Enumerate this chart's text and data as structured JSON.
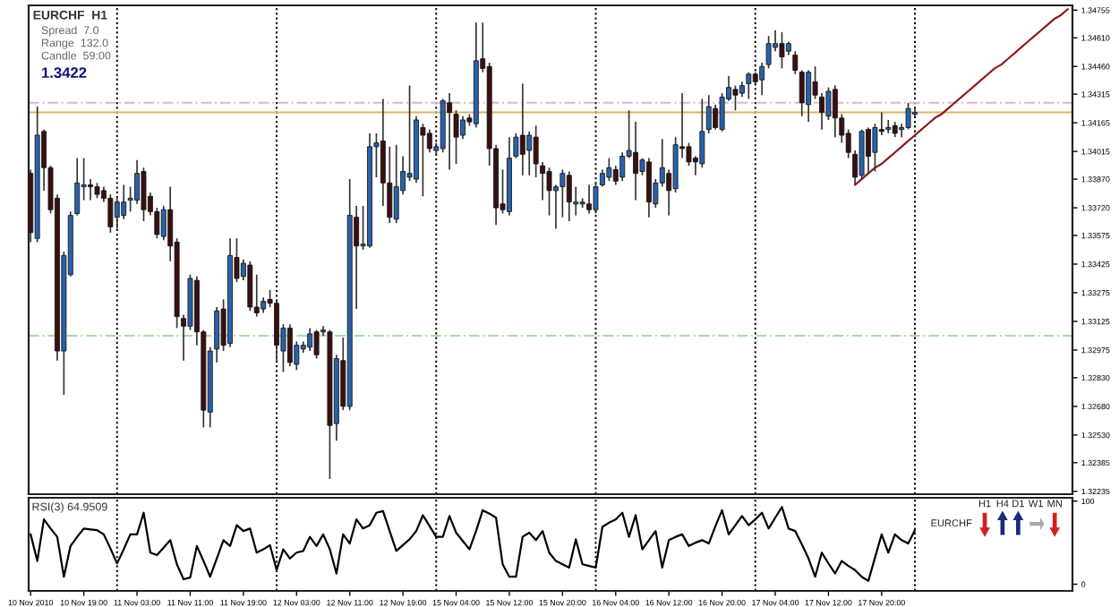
{
  "chart_data": [
    {
      "type": "candlestick",
      "title": "EURCHF  H1",
      "annotations": [
        "Spread  7.0",
        "Range  132.0",
        "Candle  59:00",
        "1.3422"
      ],
      "categories": [
        null,
        null,
        null,
        null,
        null,
        null,
        null,
        null,
        null,
        null,
        null,
        null,
        null,
        null,
        null,
        null,
        null,
        null,
        null,
        null,
        null,
        null,
        null,
        null,
        null,
        null,
        null,
        null,
        null,
        null,
        null,
        null,
        null,
        null,
        null,
        null,
        null,
        null,
        null,
        null,
        null,
        null,
        null,
        null,
        null,
        null,
        null,
        null,
        null,
        null,
        null,
        null,
        null,
        null,
        null,
        null,
        null,
        null,
        null,
        null,
        null,
        null,
        null,
        null,
        null,
        null,
        null,
        null,
        null,
        null,
        null,
        null,
        null,
        null,
        null,
        null,
        null,
        null,
        null,
        null,
        null,
        null,
        null,
        null,
        null,
        null,
        null,
        null,
        null,
        null,
        null,
        null,
        null,
        null,
        null,
        null,
        null,
        null,
        null,
        null,
        null,
        null,
        null,
        null,
        null,
        null,
        null,
        null,
        null,
        null,
        null,
        null,
        null,
        null,
        null,
        null,
        null,
        null,
        null,
        null,
        null,
        null,
        null,
        null,
        null,
        null,
        null,
        null,
        null,
        null,
        null,
        null,
        null,
        null,
        null,
        null,
        null,
        null,
        null,
        null,
        null,
        null,
        null,
        null,
        null,
        null,
        null,
        null,
        null,
        null,
        null,
        null,
        null,
        null,
        null,
        null,
        null
      ],
      "ohlc": [
        [
          1.339,
          1.3392,
          1.3354,
          1.3359
        ],
        [
          1.3356,
          1.3425,
          1.3354,
          1.341
        ],
        [
          1.3412,
          1.3413,
          1.3381,
          1.3393
        ],
        [
          1.3393,
          1.3394,
          1.3369,
          1.3371
        ],
        [
          1.3377,
          1.3379,
          1.3292,
          1.3297
        ],
        [
          1.3297,
          1.3349,
          1.3274,
          1.3347
        ],
        [
          1.3337,
          1.337,
          1.3336,
          1.3368
        ],
        [
          1.3369,
          1.3398,
          1.3368,
          1.3385
        ],
        [
          1.3383,
          1.3398,
          1.3376,
          1.3384
        ],
        [
          1.3384,
          1.3387,
          1.3376,
          1.3383
        ],
        [
          1.3383,
          1.3385,
          1.3377,
          1.3379
        ],
        [
          1.3381,
          1.3383,
          1.3375,
          1.3377
        ],
        [
          1.3377,
          1.3379,
          1.3359,
          1.3362
        ],
        [
          1.3367,
          1.3378,
          1.3361,
          1.3375
        ],
        [
          1.3368,
          1.3384,
          1.3366,
          1.3375
        ],
        [
          1.3376,
          1.3383,
          1.337,
          1.3377
        ],
        [
          1.3376,
          1.3397,
          1.3374,
          1.339
        ],
        [
          1.3391,
          1.3393,
          1.3365,
          1.3371
        ],
        [
          1.3378,
          1.338,
          1.3368,
          1.337
        ],
        [
          1.337,
          1.3372,
          1.3356,
          1.3358
        ],
        [
          1.3357,
          1.3373,
          1.3355,
          1.3371
        ],
        [
          1.3371,
          1.3383,
          1.3344,
          1.3352
        ],
        [
          1.3354,
          1.3356,
          1.3309,
          1.3315
        ],
        [
          1.3314,
          1.3316,
          1.3292,
          1.331
        ],
        [
          1.331,
          1.3337,
          1.3308,
          1.3335
        ],
        [
          1.3334,
          1.3336,
          1.33,
          1.3307
        ],
        [
          1.3307,
          1.3308,
          1.3257,
          1.3266
        ],
        [
          1.3265,
          1.3299,
          1.3257,
          1.3297
        ],
        [
          1.3298,
          1.332,
          1.3291,
          1.3318
        ],
        [
          1.3319,
          1.3324,
          1.3297,
          1.33
        ],
        [
          1.3301,
          1.3356,
          1.3299,
          1.3347
        ],
        [
          1.3346,
          1.3356,
          1.3333,
          1.3335
        ],
        [
          1.3336,
          1.3345,
          1.3334,
          1.3343
        ],
        [
          1.3342,
          1.3344,
          1.3318,
          1.332
        ],
        [
          1.332,
          1.3337,
          1.3315,
          1.3317
        ],
        [
          1.3319,
          1.3325,
          1.3317,
          1.3323
        ],
        [
          1.3324,
          1.3329,
          1.332,
          1.3322
        ],
        [
          1.3322,
          1.3324,
          1.3291,
          1.33
        ],
        [
          1.3297,
          1.3311,
          1.3286,
          1.3309
        ],
        [
          1.3309,
          1.3311,
          1.3289,
          1.3291
        ],
        [
          1.329,
          1.3302,
          1.3287,
          1.33
        ],
        [
          1.3298,
          1.3302,
          1.3296,
          1.33
        ],
        [
          1.3299,
          1.3309,
          1.3297,
          1.3306
        ],
        [
          1.3307,
          1.3308,
          1.3293,
          1.3295
        ],
        [
          1.3307,
          1.331,
          1.3305,
          1.3308
        ],
        [
          1.3307,
          1.3308,
          1.323,
          1.3258
        ],
        [
          1.3259,
          1.3295,
          1.325,
          1.3293
        ],
        [
          1.3292,
          1.3304,
          1.3266,
          1.3268
        ],
        [
          1.3268,
          1.3387,
          1.3266,
          1.3368
        ],
        [
          1.3367,
          1.3373,
          1.3319,
          1.3352
        ],
        [
          1.3352,
          1.3373,
          1.335,
          1.3353
        ],
        [
          1.3352,
          1.3411,
          1.3351,
          1.3404
        ],
        [
          1.3404,
          1.3411,
          1.3388,
          1.3406
        ],
        [
          1.3407,
          1.3429,
          1.3373,
          1.3385
        ],
        [
          1.3385,
          1.3404,
          1.3364,
          1.3367
        ],
        [
          1.3366,
          1.3405,
          1.3364,
          1.3383
        ],
        [
          1.3381,
          1.3399,
          1.3379,
          1.3391
        ],
        [
          1.3388,
          1.3436,
          1.3386,
          1.339
        ],
        [
          1.3387,
          1.342,
          1.3385,
          1.3418
        ],
        [
          1.3414,
          1.3416,
          1.3378,
          1.341
        ],
        [
          1.3411,
          1.3413,
          1.3401,
          1.3403
        ],
        [
          1.3402,
          1.3406,
          1.34,
          1.3404
        ],
        [
          1.3403,
          1.3429,
          1.3401,
          1.3428
        ],
        [
          1.3427,
          1.3432,
          1.3392,
          1.3422
        ],
        [
          1.3421,
          1.3423,
          1.3395,
          1.3409
        ],
        [
          1.341,
          1.342,
          1.3408,
          1.3418
        ],
        [
          1.3419,
          1.3421,
          1.3415,
          1.3417
        ],
        [
          1.3416,
          1.3469,
          1.3414,
          1.3449
        ],
        [
          1.345,
          1.3469,
          1.3443,
          1.3445
        ],
        [
          1.3446,
          1.3448,
          1.3394,
          1.3403
        ],
        [
          1.3403,
          1.3405,
          1.3363,
          1.3372
        ],
        [
          1.3374,
          1.3392,
          1.3369,
          1.3371
        ],
        [
          1.337,
          1.3409,
          1.3368,
          1.3398
        ],
        [
          1.3399,
          1.3411,
          1.3398,
          1.3409
        ],
        [
          1.341,
          1.3437,
          1.3389,
          1.34
        ],
        [
          1.3402,
          1.3412,
          1.3389,
          1.341
        ],
        [
          1.3409,
          1.3415,
          1.3388,
          1.3395
        ],
        [
          1.3394,
          1.3396,
          1.3376,
          1.339
        ],
        [
          1.3391,
          1.3393,
          1.3368,
          1.3381
        ],
        [
          1.3381,
          1.3384,
          1.3361,
          1.3383
        ],
        [
          1.3383,
          1.3392,
          1.3367,
          1.339
        ],
        [
          1.3389,
          1.3391,
          1.3365,
          1.3375
        ],
        [
          1.3374,
          1.3383,
          1.3368,
          1.3375
        ],
        [
          1.3374,
          1.3377,
          1.3372,
          1.3375
        ],
        [
          1.3374,
          1.3384,
          1.3369,
          1.3371
        ],
        [
          1.3371,
          1.3385,
          1.3369,
          1.3383
        ],
        [
          1.3384,
          1.3392,
          1.3383,
          1.339
        ],
        [
          1.3388,
          1.3398,
          1.3386,
          1.3393
        ],
        [
          1.3392,
          1.3394,
          1.3384,
          1.3386
        ],
        [
          1.3388,
          1.3401,
          1.3386,
          1.3399
        ],
        [
          1.3399,
          1.3423,
          1.3398,
          1.3402
        ],
        [
          1.3401,
          1.3417,
          1.3376,
          1.339
        ],
        [
          1.3391,
          1.3398,
          1.3389,
          1.3397
        ],
        [
          1.3396,
          1.3398,
          1.3367,
          1.3375
        ],
        [
          1.3374,
          1.3387,
          1.3372,
          1.3385
        ],
        [
          1.3385,
          1.3408,
          1.3383,
          1.3393
        ],
        [
          1.339,
          1.3392,
          1.3368,
          1.3381
        ],
        [
          1.3382,
          1.3409,
          1.338,
          1.3405
        ],
        [
          1.3404,
          1.3432,
          1.3398,
          1.3403
        ],
        [
          1.3404,
          1.3406,
          1.3394,
          1.3396
        ],
        [
          1.3398,
          1.3399,
          1.3389,
          1.3396
        ],
        [
          1.3395,
          1.3429,
          1.3393,
          1.3412
        ],
        [
          1.3413,
          1.3431,
          1.3411,
          1.3425
        ],
        [
          1.3424,
          1.3426,
          1.3413,
          1.3414
        ],
        [
          1.3413,
          1.3432,
          1.3412,
          1.343
        ],
        [
          1.3429,
          1.3441,
          1.3428,
          1.3435
        ],
        [
          1.3434,
          1.3436,
          1.3423,
          1.3431
        ],
        [
          1.3432,
          1.3438,
          1.343,
          1.3436
        ],
        [
          1.3437,
          1.3443,
          1.3429,
          1.3442
        ],
        [
          1.3442,
          1.3443,
          1.3436,
          1.3438
        ],
        [
          1.3439,
          1.3448,
          1.3431,
          1.3446
        ],
        [
          1.3447,
          1.3462,
          1.3445,
          1.3458
        ],
        [
          1.3456,
          1.3465,
          1.3454,
          1.3458
        ],
        [
          1.3458,
          1.3464,
          1.3445,
          1.3451
        ],
        [
          1.3454,
          1.3459,
          1.3452,
          1.3458
        ],
        [
          1.3452,
          1.3454,
          1.3442,
          1.3444
        ],
        [
          1.3443,
          1.3444,
          1.342,
          1.3427
        ],
        [
          1.3426,
          1.3444,
          1.3417,
          1.3443
        ],
        [
          1.3438,
          1.3446,
          1.3429,
          1.3431
        ],
        [
          1.343,
          1.3432,
          1.3413,
          1.3422
        ],
        [
          1.342,
          1.3435,
          1.3418,
          1.3433
        ],
        [
          1.3434,
          1.3436,
          1.3409,
          1.3419
        ],
        [
          1.3419,
          1.3421,
          1.3406,
          1.341
        ],
        [
          1.3411,
          1.3413,
          1.3398,
          1.3401
        ],
        [
          1.34,
          1.3402,
          1.3384,
          1.3388
        ],
        [
          1.3389,
          1.3413,
          1.3387,
          1.3412
        ],
        [
          1.3413,
          1.3414,
          1.339,
          1.3399
        ],
        [
          1.3401,
          1.3416,
          1.3391,
          1.3414
        ],
        [
          1.3413,
          1.3422,
          1.341,
          1.3412
        ],
        [
          1.3413,
          1.3418,
          1.3411,
          1.3414
        ],
        [
          1.3415,
          1.3417,
          1.3409,
          1.3411
        ],
        [
          1.3413,
          1.3416,
          1.3409,
          1.3414
        ],
        [
          1.3414,
          1.3427,
          1.3413,
          1.3424
        ],
        [
          1.3421,
          1.3425,
          1.342,
          1.3422
        ],
        null,
        null,
        null,
        null,
        null,
        null,
        null,
        null,
        null,
        null,
        null,
        null,
        null,
        null,
        null,
        null,
        null,
        null,
        null,
        null,
        null,
        null,
        null
      ],
      "colors": [
        "#3a1010",
        "#2862ad",
        "#3a1010",
        "#3a1010",
        "#3a1010",
        "#2862ad",
        "#2862ad",
        "#2862ad",
        "#2862ad",
        "#3a1010",
        "#3a1010",
        "#3a1010",
        "#3a1010",
        "#2862ad",
        "#2862ad",
        "#2862ad",
        "#2862ad",
        "#3a1010",
        "#3a1010",
        "#3a1010",
        "#2862ad",
        "#3a1010",
        "#3a1010",
        "#3a1010",
        "#2862ad",
        "#3a1010",
        "#3a1010",
        "#2862ad",
        "#2862ad",
        "#3a1010",
        "#2862ad",
        "#3a1010",
        "#2862ad",
        "#3a1010",
        "#3a1010",
        "#2862ad",
        "#3a1010",
        "#3a1010",
        "#2862ad",
        "#3a1010",
        "#2862ad",
        "#2862ad",
        "#2862ad",
        "#3a1010",
        "#2862ad",
        "#3a1010",
        "#2862ad",
        "#3a1010",
        "#2862ad",
        "#3a1010",
        "#2862ad",
        "#2862ad",
        "#2862ad",
        "#3a1010",
        "#3a1010",
        "#2862ad",
        "#2862ad",
        "#2862ad",
        "#2862ad",
        "#3a1010",
        "#3a1010",
        "#2862ad",
        "#2862ad",
        "#3a1010",
        "#3a1010",
        "#2862ad",
        "#3a1010",
        "#2862ad",
        "#3a1010",
        "#3a1010",
        "#3a1010",
        "#3a1010",
        "#2862ad",
        "#2862ad",
        "#3a1010",
        "#2862ad",
        "#3a1010",
        "#3a1010",
        "#3a1010",
        "#2862ad",
        "#2862ad",
        "#3a1010",
        "#2862ad",
        "#2862ad",
        "#3a1010",
        "#2862ad",
        "#2862ad",
        "#2862ad",
        "#3a1010",
        "#2862ad",
        "#2862ad",
        "#3a1010",
        "#2862ad",
        "#3a1010",
        "#2862ad",
        "#2862ad",
        "#3a1010",
        "#2862ad",
        "#3a1010",
        "#3a1010",
        "#3a1010",
        "#2862ad",
        "#2862ad",
        "#3a1010",
        "#2862ad",
        "#2862ad",
        "#3a1010",
        "#2862ad",
        "#2862ad",
        "#3a1010",
        "#2862ad",
        "#2862ad",
        "#2862ad",
        "#3a1010",
        "#2862ad",
        "#3a1010",
        "#3a1010",
        "#2862ad",
        "#3a1010",
        "#3a1010",
        "#2862ad",
        "#3a1010",
        "#3a1010",
        "#3a1010",
        "#3a1010",
        "#2862ad",
        "#3a1010",
        "#2862ad",
        "#3a1010",
        "#2862ad",
        "#3a1010",
        "#2862ad",
        "#2862ad",
        "#2862ad",
        null,
        null,
        null,
        null,
        null,
        null,
        null,
        null,
        null,
        null,
        null,
        null,
        null,
        null,
        null,
        null,
        null,
        null,
        null,
        null,
        null,
        null,
        null
      ],
      "series": [
        {
          "type": "line",
          "color": "#8b1c1c",
          "values": [
            null,
            null,
            null,
            null,
            null,
            null,
            null,
            null,
            null,
            null,
            null,
            null,
            null,
            null,
            null,
            null,
            null,
            null,
            null,
            null,
            null,
            null,
            null,
            null,
            null,
            null,
            null,
            null,
            null,
            null,
            null,
            null,
            null,
            null,
            null,
            null,
            null,
            null,
            null,
            null,
            null,
            null,
            null,
            null,
            null,
            null,
            null,
            null,
            null,
            null,
            null,
            null,
            null,
            null,
            null,
            null,
            null,
            null,
            null,
            null,
            null,
            null,
            null,
            null,
            null,
            null,
            null,
            null,
            null,
            null,
            null,
            null,
            null,
            null,
            null,
            null,
            null,
            null,
            null,
            null,
            null,
            null,
            null,
            null,
            null,
            null,
            null,
            null,
            null,
            null,
            null,
            null,
            null,
            null,
            null,
            null,
            null,
            null,
            null,
            null,
            null,
            null,
            null,
            null,
            null,
            null,
            null,
            null,
            null,
            null,
            null,
            null,
            null,
            null,
            null,
            null,
            null,
            null,
            null,
            null,
            null,
            null,
            null,
            null,
            1.3384,
            1.3387,
            1.339,
            1.3393,
            1.3395,
            1.3398,
            1.3401,
            1.3404,
            1.3407,
            1.341,
            1.3413,
            1.3416,
            1.3419,
            1.3421,
            1.3424,
            1.3427,
            1.343,
            1.3433,
            1.3436,
            1.3439,
            1.3442,
            1.3445,
            1.3447,
            1.345,
            1.3453,
            1.3456,
            1.3459,
            1.3462,
            1.3465,
            1.3468,
            1.3471,
            1.3473,
            1.3476
          ]
        }
      ],
      "ylim": [
        1.3222,
        1.3478
      ],
      "yticks": [
        1.34755,
        {
          "value": 1.3461,
          "label": "1.34610"
        },
        {
          "value": 1.3446,
          "label": "1.34460"
        },
        1.34315,
        1.34165,
        1.34015,
        {
          "value": 1.3387,
          "label": "1.33870"
        },
        {
          "value": 1.3372,
          "label": "1.33720"
        },
        1.33575,
        1.33425,
        1.33275,
        1.33125,
        1.32975,
        {
          "value": 1.3283,
          "label": "1.32830"
        },
        {
          "value": 1.3268,
          "label": "1.32680"
        },
        {
          "value": 1.3253,
          "label": "1.32530"
        },
        1.32385,
        1.32235
      ],
      "ref_lines": [
        {
          "axis": "y",
          "value": 1.3422,
          "color": "#d9b56a",
          "line_style": "solid"
        },
        {
          "axis": "y",
          "value": 1.3427,
          "color": "#dcb8c8",
          "line_style": "dashed"
        },
        {
          "axis": "y",
          "value": 1.3305,
          "color": "#a8dca8",
          "line_style": "dashed"
        }
      ],
      "tick_labels": "y"
    },
    {
      "type": "line",
      "title": "RSI(3) 64.9509",
      "annotations": [
        "EURCHF",
        "H1",
        "H4",
        "D1",
        "W1",
        "MN"
      ],
      "categories": [
        "10 Nov 2010",
        null,
        null,
        null,
        null,
        null,
        null,
        null,
        "10 Nov 19:00",
        null,
        null,
        null,
        null,
        null,
        null,
        null,
        "11 Nov 03:00",
        null,
        null,
        null,
        null,
        null,
        null,
        null,
        "11 Nov 11:00",
        null,
        null,
        null,
        null,
        null,
        null,
        null,
        "11 Nov 19:00",
        null,
        null,
        null,
        null,
        null,
        null,
        null,
        "12 Nov 03:00",
        null,
        null,
        null,
        null,
        null,
        null,
        null,
        "12 Nov 11:00",
        null,
        null,
        null,
        null,
        null,
        null,
        null,
        "12 Nov 19:00",
        null,
        null,
        null,
        null,
        null,
        null,
        null,
        "15 Nov 04:00",
        null,
        null,
        null,
        null,
        null,
        null,
        null,
        "15 Nov 12:00",
        null,
        null,
        null,
        null,
        null,
        null,
        null,
        "15 Nov 20:00",
        null,
        null,
        null,
        null,
        null,
        null,
        null,
        "16 Nov 04:00",
        null,
        null,
        null,
        null,
        null,
        null,
        null,
        "16 Nov 12:00",
        null,
        null,
        null,
        null,
        null,
        null,
        null,
        "16 Nov 20:00",
        null,
        null,
        null,
        null,
        null,
        null,
        null,
        "17 Nov 04:00",
        null,
        null,
        null,
        null,
        null,
        null,
        null,
        "17 Nov 12:00",
        null,
        null,
        null,
        null,
        null,
        null,
        null,
        "17 Nov 20:00",
        null,
        null,
        null,
        null,
        null,
        null,
        null,
        null,
        null,
        null,
        null,
        null,
        null,
        null,
        null,
        null,
        null,
        null,
        null,
        null,
        null,
        null,
        null,
        null,
        null,
        null,
        null,
        null
      ],
      "series": [
        {
          "color": "#000000",
          "values": [
            60,
            28,
            78,
            67,
            57,
            9,
            46,
            57,
            67,
            66,
            65,
            60,
            43,
            25,
            42,
            60,
            60,
            86,
            38,
            35,
            44,
            53,
            24,
            6,
            8,
            46,
            28,
            9,
            31,
            53,
            46,
            71,
            64,
            67,
            38,
            42,
            47,
            17,
            42,
            31,
            38,
            40,
            57,
            46,
            60,
            42,
            13,
            60,
            49,
            78,
            67,
            71,
            86,
            88,
            64,
            40,
            47,
            54,
            64,
            83,
            70,
            57,
            57,
            82,
            62,
            52,
            42,
            64,
            89,
            85,
            80,
            24,
            9,
            9,
            57,
            62,
            53,
            64,
            38,
            28,
            24,
            20,
            54,
            24,
            22,
            20,
            69,
            74,
            78,
            86,
            57,
            83,
            42,
            53,
            64,
            20,
            53,
            57,
            60,
            46,
            50,
            53,
            49,
            70,
            89,
            60,
            71,
            82,
            71,
            78,
            86,
            67,
            80,
            93,
            67,
            64,
            48,
            31,
            9,
            38,
            25,
            13,
            28,
            22,
            17,
            9,
            4,
            32,
            60,
            38,
            60,
            53,
            49,
            65,
            null,
            null,
            null,
            null,
            null,
            null,
            null,
            null,
            null,
            null,
            null,
            null,
            null,
            null,
            null,
            null,
            null,
            null,
            null,
            null,
            null,
            null,
            null
          ]
        }
      ],
      "ylim": [
        -8,
        104
      ],
      "yticks": [
        0,
        100
      ]
    }
  ]
}
